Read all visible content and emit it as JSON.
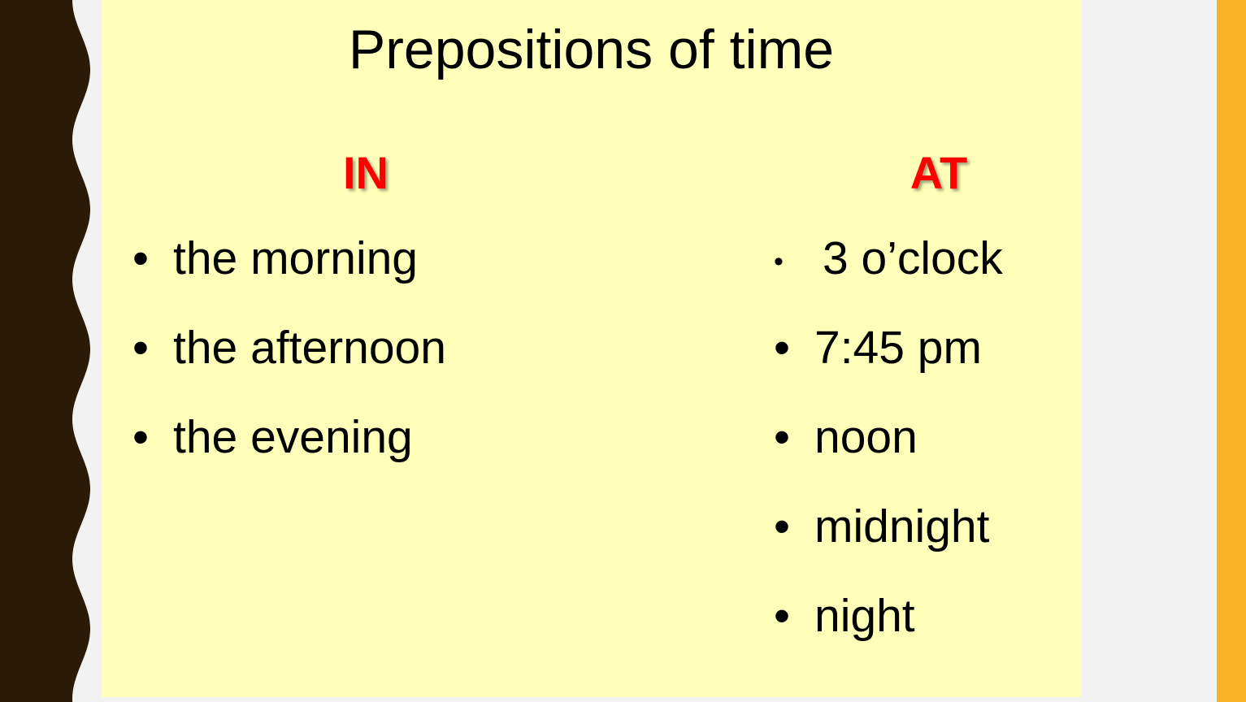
{
  "slide": {
    "title": "Prepositions of time",
    "columns": [
      {
        "heading": "IN",
        "items": [
          "the morning",
          "the afternoon",
          "the evening"
        ]
      },
      {
        "heading": "AT",
        "items": [
          "3 o’clock",
          "7:45 pm",
          "noon",
          "midnight",
          "night"
        ]
      }
    ]
  },
  "colors": {
    "background": "#f2f2f2",
    "slide": "#ffffb9",
    "border_left": "#2b1a05",
    "border_right": "#f7b324",
    "heading": "#ff0000"
  }
}
